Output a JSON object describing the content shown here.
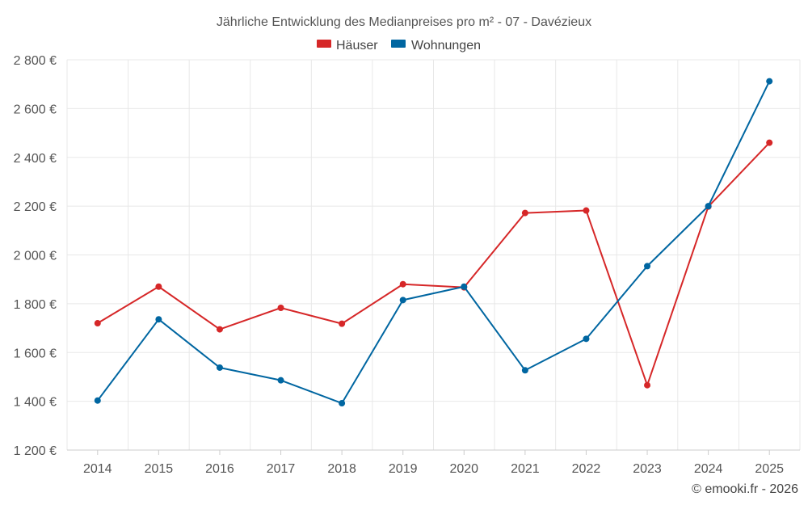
{
  "chart_data": {
    "type": "line",
    "title": "Jährliche Entwicklung des Medianpreises pro m² - 07 - Davézieux",
    "xlabel": "",
    "ylabel": "",
    "categories": [
      "2014",
      "2015",
      "2016",
      "2017",
      "2018",
      "2019",
      "2020",
      "2021",
      "2022",
      "2023",
      "2024",
      "2025"
    ],
    "ylim": [
      1200,
      2800
    ],
    "yticks": [
      1200,
      1400,
      1600,
      1800,
      2000,
      2200,
      2400,
      2600,
      2800
    ],
    "ytick_labels": [
      "1 200 €",
      "1 400 €",
      "1 600 €",
      "1 800 €",
      "2 000 €",
      "2 200 €",
      "2 400 €",
      "2 600 €",
      "2 800 €"
    ],
    "grid": true,
    "legend_position": "top-center",
    "series": [
      {
        "name": "Häuser",
        "color": "#d62728",
        "values": [
          1720,
          1870,
          1695,
          1783,
          1718,
          1880,
          1867,
          2172,
          2182,
          1466,
          2198,
          2460
        ]
      },
      {
        "name": "Wohnungen",
        "color": "#0066a1",
        "values": [
          1403,
          1736,
          1538,
          1486,
          1392,
          1815,
          1870,
          1527,
          1656,
          1954,
          2200,
          2712
        ]
      }
    ]
  },
  "credit": "© emooki.fr - 2026"
}
